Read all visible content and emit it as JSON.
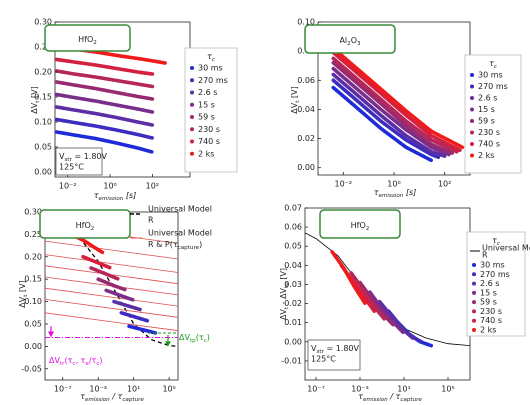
{
  "chart_data": [
    {
      "type": "scatter",
      "label": [
        "HfO",
        "2"
      ],
      "xscale": "log",
      "xlabel": [
        "τ",
        "emission",
        " [s]"
      ],
      "ylabel": [
        "ΔV",
        "t",
        " [V]"
      ],
      "xlim": [
        0.0025,
        6000
      ],
      "ylim": [
        -0.01,
        0.3
      ],
      "xticks": [
        {
          "value": 0.01,
          "label": "10⁻²"
        },
        {
          "value": 1,
          "label": "10⁰"
        },
        {
          "value": 100,
          "label": "10²"
        }
      ],
      "yticks": [
        {
          "value": 0,
          "label": "0.00"
        },
        0.05,
        {
          "value": 0.1,
          "label": "0.10"
        },
        0.15,
        {
          "value": 0.2,
          "label": "0.20"
        },
        0.25,
        {
          "value": 0.3,
          "label": "0.30"
        }
      ],
      "legend": {
        "title": [
          "τ",
          "c"
        ]
      },
      "annotation": [
        [
          "V",
          "str",
          " = 1.80V"
        ],
        "125°C"
      ],
      "series": [
        {
          "name": "30 ms",
          "color": "#1f2ad8",
          "x": [
            0.003,
            0.02,
            0.2,
            2,
            20,
            100
          ],
          "y": [
            0.08,
            0.074,
            0.067,
            0.058,
            0.048,
            0.04
          ]
        },
        {
          "name": "270 ms",
          "color": "#3d2cc0",
          "x": [
            0.003,
            0.02,
            0.2,
            2,
            20,
            100
          ],
          "y": [
            0.105,
            0.099,
            0.092,
            0.084,
            0.075,
            0.068
          ]
        },
        {
          "name": "2.6 s",
          "color": "#5c2ea6",
          "x": [
            0.003,
            0.02,
            0.2,
            2,
            20,
            100
          ],
          "y": [
            0.13,
            0.124,
            0.117,
            0.109,
            0.1,
            0.094
          ]
        },
        {
          "name": "15 s",
          "color": "#7a2e8c",
          "x": [
            0.003,
            0.02,
            0.2,
            2,
            20,
            100
          ],
          "y": [
            0.155,
            0.149,
            0.142,
            0.134,
            0.126,
            0.12
          ]
        },
        {
          "name": "59 s",
          "color": "#982a72",
          "x": [
            0.003,
            0.02,
            0.2,
            2,
            20,
            100
          ],
          "y": [
            0.18,
            0.174,
            0.167,
            0.159,
            0.151,
            0.146
          ]
        },
        {
          "name": "230 s",
          "color": "#b62658",
          "x": [
            0.003,
            0.02,
            0.2,
            2,
            20,
            100
          ],
          "y": [
            0.202,
            0.196,
            0.19,
            0.183,
            0.176,
            0.171
          ]
        },
        {
          "name": "740 s",
          "color": "#d4203e",
          "x": [
            0.003,
            0.02,
            0.2,
            2,
            20,
            100
          ],
          "y": [
            0.225,
            0.22,
            0.214,
            0.207,
            0.2,
            0.196
          ]
        },
        {
          "name": "2 ks",
          "color": "#f01a1a",
          "x": [
            0.003,
            0.03,
            0.3,
            3,
            30,
            400
          ],
          "y": [
            0.25,
            0.245,
            0.239,
            0.232,
            0.226,
            0.218
          ]
        }
      ]
    },
    {
      "type": "scatter",
      "label": [
        "Al",
        "2",
        "O",
        "3"
      ],
      "xscale": "log",
      "xlabel": [
        "τ",
        "emission",
        " [s]"
      ],
      "ylabel": [
        "ΔV",
        "t",
        " [V]"
      ],
      "xlim": [
        0.001,
        1000
      ],
      "ylim": [
        -0.005,
        0.1
      ],
      "xticks": [
        {
          "value": 0.01,
          "label": "10⁻²"
        },
        {
          "value": 1,
          "label": "10⁰"
        },
        {
          "value": 100,
          "label": "10²"
        }
      ],
      "yticks": [
        {
          "value": 0,
          "label": "0.00"
        },
        0.02,
        0.04,
        0.06,
        0.08,
        {
          "value": 0.1,
          "label": "0.10"
        }
      ],
      "legend": {
        "title": [
          "τ",
          "c"
        ]
      },
      "series": [
        {
          "name": "30 ms",
          "color": "#1f2ad8",
          "x": [
            0.004,
            0.03,
            0.3,
            3,
            30
          ],
          "y": [
            0.055,
            0.042,
            0.027,
            0.014,
            0.005
          ]
        },
        {
          "name": "270 ms",
          "color": "#3d2cc0",
          "x": [
            0.004,
            0.03,
            0.3,
            3,
            30,
            60
          ],
          "y": [
            0.06,
            0.047,
            0.032,
            0.019,
            0.009,
            0.007
          ]
        },
        {
          "name": "2.6 s",
          "color": "#5c2ea6",
          "x": [
            0.004,
            0.03,
            0.3,
            3,
            30,
            100
          ],
          "y": [
            0.064,
            0.051,
            0.036,
            0.022,
            0.011,
            0.008
          ]
        },
        {
          "name": "15 s",
          "color": "#7a2e8c",
          "x": [
            0.004,
            0.03,
            0.3,
            3,
            30,
            150
          ],
          "y": [
            0.068,
            0.055,
            0.04,
            0.026,
            0.014,
            0.009
          ]
        },
        {
          "name": "59 s",
          "color": "#982a72",
          "x": [
            0.004,
            0.03,
            0.3,
            3,
            30,
            200
          ],
          "y": [
            0.072,
            0.059,
            0.044,
            0.029,
            0.016,
            0.01
          ]
        },
        {
          "name": "230 s",
          "color": "#b62658",
          "x": [
            0.004,
            0.03,
            0.3,
            3,
            30,
            300
          ],
          "y": [
            0.075,
            0.062,
            0.047,
            0.032,
            0.019,
            0.011
          ]
        },
        {
          "name": "740 s",
          "color": "#d4203e",
          "x": [
            0.004,
            0.03,
            0.3,
            3,
            30,
            400
          ],
          "y": [
            0.079,
            0.066,
            0.051,
            0.036,
            0.022,
            0.012
          ]
        },
        {
          "name": "2 ks",
          "color": "#f01a1a",
          "x": [
            0.004,
            0.03,
            0.3,
            3,
            30,
            500
          ],
          "y": [
            0.082,
            0.069,
            0.054,
            0.039,
            0.025,
            0.014
          ]
        }
      ]
    },
    {
      "type": "scatter",
      "label": [
        "HfO",
        "2"
      ],
      "xscale": "log",
      "xlabel": [
        "τ",
        "emission",
        " / τ",
        "capture"
      ],
      "ylabel": [
        "ΔV",
        "t",
        " [V]"
      ],
      "xlim": [
        1e-09,
        1000000
      ],
      "ylim": [
        -0.075,
        0.3
      ],
      "xticks": [
        {
          "value": 1e-07,
          "label": "10⁻⁷"
        },
        {
          "value": 0.001,
          "label": "10⁻³"
        },
        {
          "value": 10,
          "label": "10¹"
        },
        {
          "value": 100000,
          "label": "10⁵"
        }
      ],
      "yticks": [
        -0.05,
        {
          "value": 0,
          "label": "0.00"
        },
        0.05,
        {
          "value": 0.1,
          "label": "0.10"
        },
        0.15,
        {
          "value": 0.2,
          "label": "0.20"
        },
        0.25,
        {
          "value": 0.3,
          "label": "0.30"
        }
      ],
      "models": [
        {
          "name": [
            "Universal Model",
            "R"
          ],
          "color": "#000000",
          "style": "dashed",
          "lines": [
            {
              "x": [
                1e-09,
                1e-07,
                1e-05,
                0.001,
                0.1,
                10,
                1000,
                100000,
                1000000
              ],
              "y": [
                0.26,
                0.255,
                0.24,
                0.19,
                0.12,
                0.05,
                0.015,
                0.002,
                0.0
              ]
            }
          ]
        },
        {
          "name": [
            "Universal Model",
            [
              "R & P(τ",
              "capture",
              ")"
            ]
          ],
          "color": "#e05050",
          "style": "solid",
          "lines": [
            {
              "x": [
                1e-09,
                1000000
              ],
              "y": [
                0.27,
                0.23
              ]
            },
            {
              "x": [
                1e-09,
                1000000
              ],
              "y": [
                0.235,
                0.195
              ]
            },
            {
              "x": [
                1e-09,
                1000000
              ],
              "y": [
                0.205,
                0.165
              ]
            },
            {
              "x": [
                1e-09,
                1000000
              ],
              "y": [
                0.18,
                0.14
              ]
            },
            {
              "x": [
                1e-09,
                1000000
              ],
              "y": [
                0.155,
                0.115
              ]
            },
            {
              "x": [
                1e-09,
                1000000
              ],
              "y": [
                0.13,
                0.09
              ]
            },
            {
              "x": [
                1e-09,
                1000000
              ],
              "y": [
                0.105,
                0.065
              ]
            },
            {
              "x": [
                1e-09,
                1000000
              ],
              "y": [
                0.075,
                0.035
              ]
            }
          ]
        }
      ],
      "callouts": [
        {
          "text": [
            "ΔV",
            "tp",
            "(τ",
            "c",
            ")"
          ],
          "color": "#1a9a1a"
        },
        {
          "text": [
            "ΔV",
            "tr",
            "(τ",
            "c",
            ", τ",
            "e",
            "/τ",
            "c",
            ")"
          ],
          "color": "#e010e0"
        }
      ],
      "series": [
        {
          "color": "#1f2ad8",
          "x": [
            3,
            30,
            300,
            3000
          ],
          "y": [
            0.045,
            0.04,
            0.035,
            0.03
          ]
        },
        {
          "color": "#3d2cc0",
          "x": [
            0.4,
            4,
            40,
            400
          ],
          "y": [
            0.075,
            0.069,
            0.063,
            0.057
          ]
        },
        {
          "color": "#5c2ea6",
          "x": [
            0.06,
            0.6,
            6,
            60
          ],
          "y": [
            0.1,
            0.094,
            0.088,
            0.082
          ]
        },
        {
          "color": "#7a2e8c",
          "x": [
            0.008,
            0.08,
            0.8,
            8
          ],
          "y": [
            0.125,
            0.118,
            0.111,
            0.104
          ]
        },
        {
          "color": "#982a72",
          "x": [
            0.001,
            0.01,
            0.1,
            1
          ],
          "y": [
            0.15,
            0.142,
            0.134,
            0.127
          ]
        },
        {
          "color": "#b62658",
          "x": [
            0.00016,
            0.0016,
            0.016,
            0.16
          ],
          "y": [
            0.175,
            0.167,
            0.159,
            0.151
          ]
        },
        {
          "color": "#d4203e",
          "x": [
            2e-05,
            0.0002,
            0.002,
            0.02
          ],
          "y": [
            0.2,
            0.192,
            0.184,
            0.176
          ]
        },
        {
          "color": "#f01a1a",
          "x": [
            3e-06,
            3e-05,
            0.0003,
            0.003
          ],
          "y": [
            0.245,
            0.235,
            0.222,
            0.21
          ]
        }
      ]
    },
    {
      "type": "scatter",
      "label": [
        "HfO",
        "2"
      ],
      "xscale": "log",
      "xlabel": [
        "τ",
        "emission",
        " / τ",
        "capture"
      ],
      "ylabel": [
        "ΔV",
        "t",
        " - ΔV",
        "tp",
        " [V]"
      ],
      "xlim": [
        1e-08,
        10000000
      ],
      "ylim": [
        -0.02,
        0.07
      ],
      "xticks": [
        {
          "value": 1e-07,
          "label": "10⁻⁷"
        },
        {
          "value": 0.001,
          "label": "10⁻³"
        },
        {
          "value": 10,
          "label": "10¹"
        },
        {
          "value": 100000,
          "label": "10⁵"
        }
      ],
      "yticks": [
        -0.01,
        {
          "value": 0,
          "label": "0.00"
        },
        0.01,
        0.02,
        0.03,
        0.04,
        0.05,
        0.06,
        0.07
      ],
      "legend": {
        "title": [
          "τ",
          "c"
        ]
      },
      "annotation": [
        [
          "V",
          "str",
          " = 1.80V"
        ],
        "125°C"
      ],
      "models": [
        {
          "name": [
            "Universal Model",
            "R"
          ],
          "color": "#000000",
          "style": "solid",
          "lines": [
            {
              "x": [
                1e-08,
                1e-07,
                1e-05,
                0.001,
                0.1,
                10,
                1000,
                100000,
                10000000
              ],
              "y": [
                0.057,
                0.054,
                0.045,
                0.03,
                0.016,
                0.007,
                0.002,
                -0.001,
                -0.002
              ]
            }
          ]
        }
      ],
      "series": [
        {
          "name": "30 ms",
          "color": "#1f2ad8",
          "x": [
            3,
            30,
            300,
            3000
          ],
          "y": [
            0.01,
            0.004,
            0.0,
            -0.002
          ]
        },
        {
          "name": "270 ms",
          "color": "#3d2cc0",
          "x": [
            0.4,
            4,
            40,
            400
          ],
          "y": [
            0.016,
            0.009,
            0.003,
            0.0
          ]
        },
        {
          "name": "2.6 s",
          "color": "#5c2ea6",
          "x": [
            0.06,
            0.6,
            6,
            60
          ],
          "y": [
            0.021,
            0.014,
            0.007,
            0.002
          ]
        },
        {
          "name": "15 s",
          "color": "#7a2e8c",
          "x": [
            0.008,
            0.08,
            0.8,
            8
          ],
          "y": [
            0.026,
            0.018,
            0.011,
            0.005
          ]
        },
        {
          "name": "59 s",
          "color": "#982a72",
          "x": [
            0.001,
            0.01,
            0.1,
            1
          ],
          "y": [
            0.031,
            0.023,
            0.015,
            0.009
          ]
        },
        {
          "name": "230 s",
          "color": "#b62658",
          "x": [
            0.00016,
            0.0016,
            0.016,
            0.16
          ],
          "y": [
            0.036,
            0.028,
            0.019,
            0.012
          ]
        },
        {
          "name": "740 s",
          "color": "#d4203e",
          "x": [
            2e-05,
            0.0002,
            0.002,
            0.02
          ],
          "y": [
            0.04,
            0.032,
            0.024,
            0.016
          ]
        },
        {
          "name": "2 ks",
          "color": "#f01a1a",
          "x": [
            3e-06,
            3e-05,
            0.0003,
            0.003
          ],
          "y": [
            0.047,
            0.039,
            0.029,
            0.02
          ]
        }
      ]
    }
  ]
}
